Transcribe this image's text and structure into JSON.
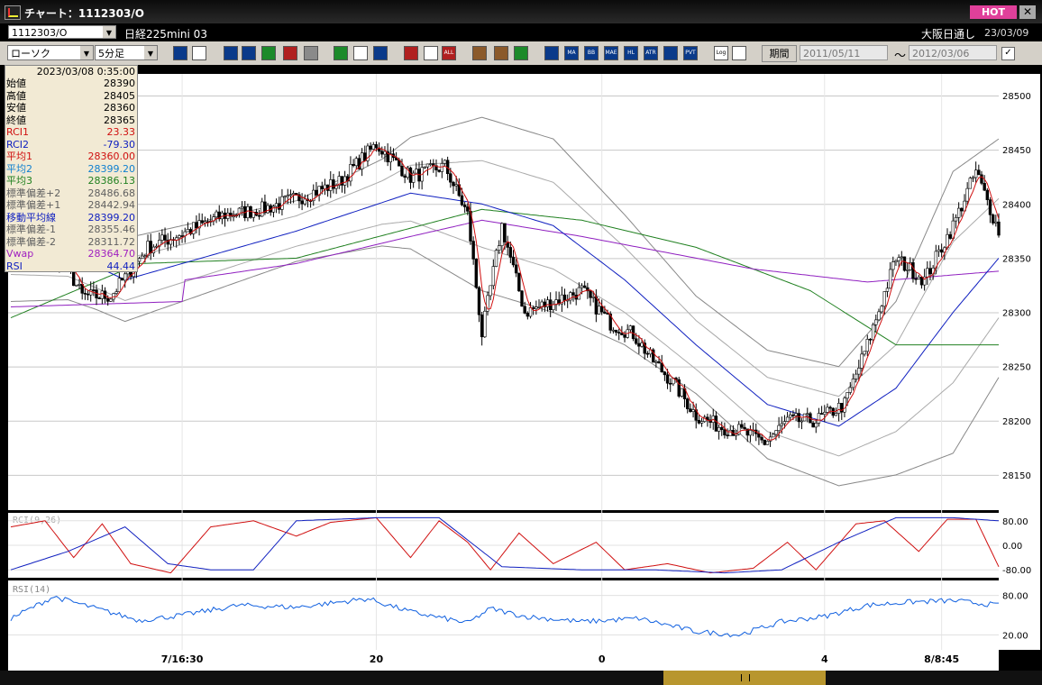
{
  "window": {
    "title": "チャート：1112303/O",
    "hot_label": "HOT",
    "close_label": "✕"
  },
  "symbol_bar": {
    "symbol_code": "1112303/O",
    "symbol_name": "日経225mini 03",
    "exchange": "大阪日通し",
    "date": "23/03/09"
  },
  "toolbar": {
    "chart_type": "ローソク",
    "interval": "5分足",
    "period_label": "期間",
    "date_from": "2011/05/11",
    "date_to": "2012/03/06",
    "tilde": "～",
    "check": "✓",
    "buttons": [
      "zoom-icon",
      "crosshair-icon",
      "draw-icon",
      "search-icon",
      "window-icon",
      "level-icon",
      "alert-icon",
      "pen-icon",
      "arrow-icon",
      "undo-icon",
      "candle-icon",
      "bar-icon",
      "all-icon",
      "settings-icon",
      "wrench-icon",
      "palette-icon",
      "volume-icon",
      "ma-icon",
      "bb-icon",
      "mae-icon",
      "hl-icon",
      "atr-icon",
      "bs-icon",
      "pvt-icon",
      "log-icon",
      "export-icon"
    ],
    "button_labels": {
      "ma": "MA",
      "bb": "BB",
      "mae": "MAE",
      "hl": "HL",
      "atr": "ATR",
      "pvt": "PVT",
      "all": "ALL",
      "log": "Log"
    }
  },
  "info_panel": {
    "datetime": "2023/03/08 0:35:00",
    "rows": [
      {
        "label": "始値",
        "value": "28390",
        "color": "#000000"
      },
      {
        "label": "高値",
        "value": "28405",
        "color": "#000000"
      },
      {
        "label": "安値",
        "value": "28360",
        "color": "#000000"
      },
      {
        "label": "終値",
        "value": "28365",
        "color": "#000000"
      },
      {
        "label": "RCI1",
        "value": "23.33",
        "color": "#d01010"
      },
      {
        "label": "RCI2",
        "value": "-79.30",
        "color": "#1020c0"
      },
      {
        "label": "平均1",
        "value": "28360.00",
        "color": "#d01010"
      },
      {
        "label": "平均2",
        "value": "28399.20",
        "color": "#1080d0"
      },
      {
        "label": "平均3",
        "value": "28386.13",
        "color": "#208020"
      },
      {
        "label": "標準偏差+2",
        "value": "28486.68",
        "color": "#606060"
      },
      {
        "label": "標準偏差+1",
        "value": "28442.94",
        "color": "#606060"
      },
      {
        "label": "移動平均線",
        "value": "28399.20",
        "color": "#1020c0"
      },
      {
        "label": "標準偏差-1",
        "value": "28355.46",
        "color": "#606060"
      },
      {
        "label": "標準偏差-2",
        "value": "28311.72",
        "color": "#606060"
      },
      {
        "label": "Vwap",
        "value": "28364.70",
        "color": "#a020c0"
      },
      {
        "label": "RSI",
        "value": "44.44",
        "color": "#1020c0"
      }
    ]
  },
  "chart_data": {
    "type": "candlestick",
    "price_axis": {
      "ticks": [
        "28500",
        "28450",
        "28400",
        "28350",
        "28300",
        "28250",
        "28200",
        "28150"
      ],
      "range": [
        28120,
        28520
      ]
    },
    "time_axis": {
      "labels": [
        "7/16:30",
        "20",
        "0",
        "4",
        "8/8:45"
      ]
    },
    "rci_panel": {
      "title": "RCI(9,26)",
      "ticks": [
        "80.00",
        "0.00",
        "-80.00"
      ],
      "range": [
        -100,
        100
      ]
    },
    "rsi_panel": {
      "title": "RSI(14)",
      "ticks": [
        "80.00",
        "20.00"
      ],
      "range": [
        0,
        100
      ]
    },
    "close_anchors": [
      [
        0,
        28390
      ],
      [
        10,
        28375
      ],
      [
        20,
        28340
      ],
      [
        25,
        28315
      ],
      [
        35,
        28315
      ],
      [
        48,
        28360
      ],
      [
        62,
        28375
      ],
      [
        75,
        28390
      ],
      [
        88,
        28395
      ],
      [
        100,
        28405
      ],
      [
        115,
        28420
      ],
      [
        128,
        28455
      ],
      [
        140,
        28425
      ],
      [
        152,
        28435
      ],
      [
        160,
        28390
      ],
      [
        165,
        28280
      ],
      [
        172,
        28380
      ],
      [
        180,
        28300
      ],
      [
        190,
        28310
      ],
      [
        200,
        28320
      ],
      [
        210,
        28290
      ],
      [
        218,
        28280
      ],
      [
        225,
        28255
      ],
      [
        232,
        28235
      ],
      [
        240,
        28205
      ],
      [
        248,
        28195
      ],
      [
        256,
        28190
      ],
      [
        264,
        28180
      ],
      [
        272,
        28200
      ],
      [
        282,
        28200
      ],
      [
        292,
        28215
      ],
      [
        300,
        28270
      ],
      [
        310,
        28350
      ],
      [
        320,
        28330
      ],
      [
        330,
        28380
      ],
      [
        338,
        28430
      ],
      [
        346,
        28375
      ]
    ],
    "rci1_anchors": [
      [
        0,
        60
      ],
      [
        12,
        80
      ],
      [
        22,
        -40
      ],
      [
        32,
        70
      ],
      [
        42,
        -60
      ],
      [
        56,
        -90
      ],
      [
        70,
        60
      ],
      [
        85,
        80
      ],
      [
        100,
        30
      ],
      [
        112,
        75
      ],
      [
        128,
        90
      ],
      [
        140,
        -40
      ],
      [
        150,
        80
      ],
      [
        160,
        10
      ],
      [
        168,
        -80
      ],
      [
        178,
        40
      ],
      [
        190,
        -60
      ],
      [
        205,
        10
      ],
      [
        215,
        -80
      ],
      [
        230,
        -60
      ],
      [
        245,
        -90
      ],
      [
        260,
        -75
      ],
      [
        272,
        10
      ],
      [
        282,
        -80
      ],
      [
        296,
        70
      ],
      [
        306,
        80
      ],
      [
        318,
        -20
      ],
      [
        328,
        85
      ],
      [
        338,
        85
      ],
      [
        346,
        -70
      ]
    ],
    "rci2_anchors": [
      [
        0,
        -80
      ],
      [
        20,
        -20
      ],
      [
        40,
        60
      ],
      [
        55,
        -60
      ],
      [
        70,
        -80
      ],
      [
        85,
        -80
      ],
      [
        100,
        80
      ],
      [
        128,
        90
      ],
      [
        150,
        90
      ],
      [
        172,
        -70
      ],
      [
        200,
        -80
      ],
      [
        225,
        -80
      ],
      [
        250,
        -90
      ],
      [
        270,
        -80
      ],
      [
        290,
        10
      ],
      [
        310,
        90
      ],
      [
        330,
        90
      ],
      [
        346,
        80
      ]
    ],
    "rsi_anchors": [
      [
        0,
        45
      ],
      [
        15,
        78
      ],
      [
        30,
        60
      ],
      [
        45,
        42
      ],
      [
        60,
        50
      ],
      [
        80,
        65
      ],
      [
        100,
        62
      ],
      [
        125,
        75
      ],
      [
        140,
        55
      ],
      [
        160,
        38
      ],
      [
        168,
        60
      ],
      [
        180,
        48
      ],
      [
        200,
        40
      ],
      [
        220,
        45
      ],
      [
        240,
        25
      ],
      [
        255,
        20
      ],
      [
        270,
        40
      ],
      [
        285,
        48
      ],
      [
        300,
        65
      ],
      [
        315,
        70
      ],
      [
        330,
        72
      ],
      [
        346,
        65
      ]
    ],
    "vwap_anchors": [
      [
        0,
        28305
      ],
      [
        60,
        28310
      ],
      [
        61,
        28330
      ],
      [
        100,
        28345
      ],
      [
        140,
        28370
      ],
      [
        165,
        28385
      ],
      [
        200,
        28370
      ],
      [
        260,
        28340
      ],
      [
        300,
        28328
      ],
      [
        346,
        28338
      ]
    ],
    "ma_long_anchors": [
      [
        0,
        28295
      ],
      [
        45,
        28345
      ],
      [
        100,
        28350
      ],
      [
        165,
        28395
      ],
      [
        200,
        28385
      ],
      [
        240,
        28360
      ],
      [
        280,
        28320
      ],
      [
        310,
        28270
      ],
      [
        346,
        28270
      ]
    ],
    "bb_mid_anchors": [
      [
        0,
        28360
      ],
      [
        20,
        28355
      ],
      [
        40,
        28330
      ],
      [
        60,
        28345
      ],
      [
        100,
        28375
      ],
      [
        140,
        28410
      ],
      [
        165,
        28400
      ],
      [
        190,
        28380
      ],
      [
        215,
        28330
      ],
      [
        240,
        28270
      ],
      [
        265,
        28215
      ],
      [
        290,
        28195
      ],
      [
        310,
        28230
      ],
      [
        330,
        28300
      ],
      [
        346,
        28350
      ]
    ],
    "bb_width_anchors": [
      [
        0,
        50
      ],
      [
        30,
        40
      ],
      [
        60,
        35
      ],
      [
        100,
        28
      ],
      [
        130,
        40
      ],
      [
        165,
        80
      ],
      [
        190,
        80
      ],
      [
        215,
        60
      ],
      [
        240,
        45
      ],
      [
        265,
        50
      ],
      [
        290,
        55
      ],
      [
        310,
        80
      ],
      [
        330,
        130
      ],
      [
        346,
        110
      ]
    ]
  }
}
